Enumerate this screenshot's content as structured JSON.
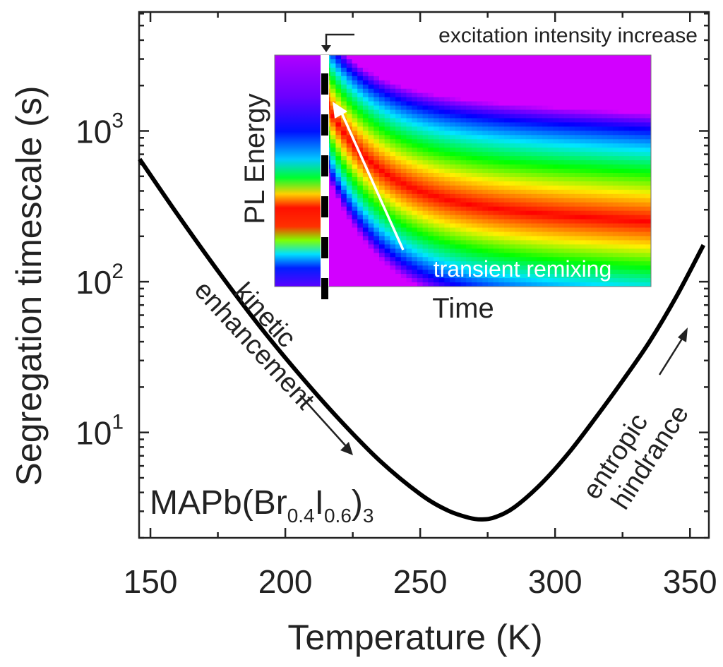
{
  "chart_data": {
    "type": "line",
    "title": "",
    "xlabel": "Temperature (K)",
    "ylabel": "Segregation timescale (s)",
    "xscale": "linear",
    "yscale": "log",
    "xlim": [
      145.8,
      357
    ],
    "ylim": [
      2.0,
      6150
    ],
    "grid": false,
    "x_ticks": [
      150,
      200,
      250,
      300,
      350
    ],
    "x_tick_labels": [
      "150",
      "200",
      "250",
      "300",
      "350"
    ],
    "x_minor_ticks": [
      175,
      225,
      275,
      325
    ],
    "y_ticks": [
      10,
      100,
      1000
    ],
    "y_tick_labels": [
      {
        "base": "10",
        "exp": "1"
      },
      {
        "base": "10",
        "exp": "2"
      },
      {
        "base": "10",
        "exp": "3"
      }
    ],
    "series": [
      {
        "name": "segregation timescale",
        "color": "#000000",
        "x": [
          146,
          160,
          175,
          190,
          205,
          220,
          235,
          250,
          260,
          268,
          273,
          278,
          285,
          295,
          305,
          315,
          325,
          335,
          345,
          355
        ],
        "y": [
          650,
          280,
          118,
          52,
          24.5,
          12.2,
          6.5,
          3.9,
          3.05,
          2.72,
          2.65,
          2.75,
          3.2,
          4.6,
          7.3,
          12.5,
          22,
          40,
          80,
          175
        ]
      }
    ],
    "annotations": {
      "compound": {
        "prefix": "MAPb(Br",
        "sub1": "0.4",
        "mid": "I",
        "sub2": "0.6",
        "suffix": ")",
        "sub3": "3"
      },
      "left_label_line1": "kinetic",
      "left_label_line2": "enhancement",
      "right_label_line1": "entropic",
      "right_label_line2": "hindrance",
      "inset_top_label": "excitation intensity increase",
      "inset_arrow_label": "transient remixing",
      "inset_ylabel": "PL Energy",
      "inset_xlabel": "Time"
    },
    "inset": {
      "type": "heatmap",
      "description": "PL energy vs time map, rainbow colormap; before excitation increase a single red band near low energy; after increase band jumps high then relaxes toward middle-low energy",
      "colormap": [
        "#d000ff",
        "#0000ff",
        "#00ffff",
        "#00ff00",
        "#ffff00",
        "#ff0000"
      ]
    }
  }
}
